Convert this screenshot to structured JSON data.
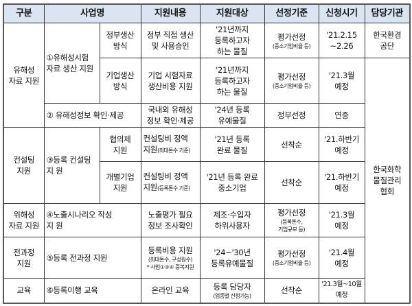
{
  "headers": [
    "구분",
    "사업명",
    "지원내용",
    "지원대상",
    "선정기준",
    "신청시기",
    "담당기관"
  ],
  "rows": {
    "r1": {
      "category": "유해성\n자료 지원",
      "program": "①유해성시험\n자료 생산 지원",
      "sub": "정부생산\n방식",
      "content": "정부 직접 생산\n및 사용승인",
      "target": "'21년까지\n등록하고자\n하는 물질",
      "criteria": "평가선정",
      "criteria_note": "(중소기업비율 등)",
      "period": "'21.2.15\n~2.26",
      "agency": "한국환경\n공단"
    },
    "r2": {
      "sub": "기업생산\n방식",
      "content": "기업 시험자료\n생산비용 지원",
      "target": "'21년까지\n등록하고자\n하는 물질",
      "criteria": "평가선정",
      "criteria_note": "(중소기업비율 등)",
      "period": "'21.3월\n예정"
    },
    "r3": {
      "program": "② 유해성정보 확인·제공",
      "content": "국내외 유해성\n정보 확인·제공",
      "target": "'24년 등록\n유예물질",
      "criteria": "정부선정",
      "period": "연중"
    },
    "r4": {
      "category": "컨설팅\n지원",
      "program": "③등록 컨설팅\n지 원",
      "sub": "협의체\n지원",
      "content": "컨설팅비 정액\n지원",
      "content_note": "(최대톤수 기준)",
      "target": "'21년 등록\n완료 물질",
      "criteria": "선착순",
      "period": "'21.하반기\n예정",
      "agency": "한국화학\n물질관리\n협회"
    },
    "r5": {
      "sub": "개별기업\n지원",
      "content": "컨설팅비 정액\n지원",
      "content_note": "(등록톤수 기준)",
      "target": "'21년 등록 완료\n중소기업",
      "criteria": "선착순",
      "period": "'21.하반기\n예정"
    },
    "r6": {
      "category": "위해성\n자료 지원",
      "program": "④노출시나리오  작성\n지 원",
      "content": "노출평가 필요\n정보 조사확인",
      "target": "제조·수입자\n하위사용자",
      "criteria": "평가선정",
      "criteria_note": "(등록톤수,\n기업규모 등)",
      "period": "'21.3월\n예정"
    },
    "r7": {
      "category": "전과정\n지원",
      "program": "⑤등록 전과정 지원",
      "content": "등록비용 지원",
      "content_note": "(최대톤수, 구성원수)\n* 사업①③④ 중복지원",
      "target": "'24~'30년\n등록유예물질",
      "criteria": "평가선정",
      "criteria_note": "(중소기업비율 등)",
      "period": "'21.4월\n예정"
    },
    "r8": {
      "category": "교육",
      "program": "⑥등록이행 교육",
      "content": "온라인 교육",
      "target": "등록 담당자",
      "target_note": "(업종별 신청가능)",
      "criteria": "선착순",
      "period": "'21.3월~10월\n예정"
    }
  }
}
